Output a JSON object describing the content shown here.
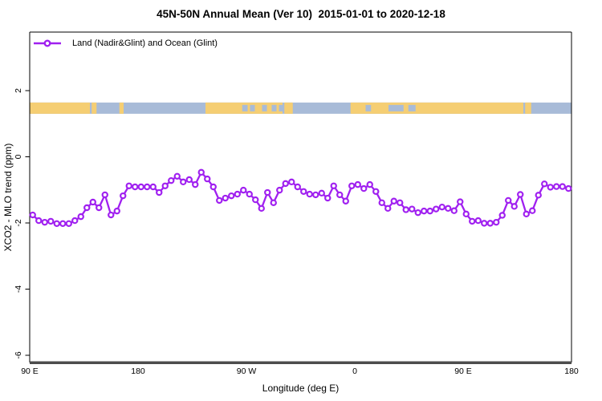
{
  "title": "45N-50N Annual Mean (Ver 10)  2015-01-01 to 2020-12-18",
  "legend": {
    "label": "Land (Nadir&Glint) and Ocean (Glint)"
  },
  "colors": {
    "series": "#A020F0",
    "marker_fill": "#ffffff",
    "land": "#F5CE73",
    "ocean": "#A8BBD8",
    "axis": "#000000",
    "baseline": "#4d4d4d",
    "background": "#ffffff"
  },
  "chart_data": {
    "type": "line",
    "title": "45N-50N Annual Mean (Ver 10)  2015-01-01 to 2020-12-18",
    "xlabel": "Longitude (deg E)",
    "ylabel": "XCO2 - MLO trend (ppm)",
    "xlim": [
      90,
      540
    ],
    "ylim": [
      -6.22,
      3.77
    ],
    "grid": false,
    "legend_position": "top-left-inside",
    "x_ticks": [
      {
        "pos": 90,
        "label": "90 E"
      },
      {
        "pos": 180,
        "label": "180"
      },
      {
        "pos": 270,
        "label": "90 W"
      },
      {
        "pos": 360,
        "label": "0"
      },
      {
        "pos": 450,
        "label": "90 E"
      },
      {
        "pos": 540,
        "label": "180"
      }
    ],
    "y_ticks": [
      {
        "pos": 2,
        "label": "2"
      },
      {
        "pos": 0,
        "label": "0"
      },
      {
        "pos": -2,
        "label": "-2"
      },
      {
        "pos": -4,
        "label": "-4"
      },
      {
        "pos": -6,
        "label": "-6"
      }
    ],
    "map_band": {
      "description": "land/ocean strip along 45N-50N",
      "value_range": [
        1.3,
        1.64
      ],
      "land_segments_lon": [
        [
          90,
          140
        ],
        [
          141.5,
          145.5
        ],
        [
          164.5,
          168
        ],
        [
          236,
          300
        ],
        [
          301.5,
          308.5
        ],
        [
          356.5,
          500
        ],
        [
          501.5,
          506.5
        ]
      ],
      "ocean_specks_lon": [
        [
          266.5,
          271
        ],
        [
          273,
          277
        ],
        [
          283,
          287
        ],
        [
          291,
          295
        ],
        [
          297,
          300.5
        ],
        [
          369,
          373.5
        ],
        [
          388,
          400.5
        ],
        [
          404.5,
          410.5
        ]
      ]
    },
    "series": [
      {
        "name": "Land (Nadir&Glint) and Ocean (Glint)",
        "marker": "open-circle",
        "x": [
          92.5,
          97.5,
          102.5,
          107.5,
          112.5,
          117.5,
          122.5,
          127.5,
          132.5,
          137.5,
          142.5,
          147.5,
          152.5,
          157.5,
          162.5,
          167.5,
          172.5,
          177.5,
          182.5,
          187.5,
          192.5,
          197.5,
          202.5,
          207.5,
          212.5,
          217.5,
          222.5,
          227.5,
          232.5,
          237.5,
          242.5,
          247.5,
          252.5,
          257.5,
          262.5,
          267.5,
          272.5,
          277.5,
          282.5,
          287.5,
          292.5,
          297.5,
          302.5,
          307.5,
          312.5,
          317.5,
          322.5,
          327.5,
          332.5,
          337.5,
          342.5,
          347.5,
          352.5,
          357.5,
          362.5,
          367.5,
          372.5,
          377.5,
          382.5,
          387.5,
          392.5,
          397.5,
          402.5,
          407.5,
          412.5,
          417.5,
          422.5,
          427.5,
          432.5,
          437.5,
          442.5,
          447.5,
          452.5,
          457.5,
          462.5,
          467.5,
          472.5,
          477.5,
          482.5,
          487.5,
          492.5,
          497.5,
          502.5,
          507.5,
          512.5,
          517.5,
          522.5,
          527.5,
          532.5,
          537.5
        ],
        "y": [
          -1.76,
          -1.93,
          -1.98,
          -1.95,
          -2.02,
          -2.02,
          -2.02,
          -1.93,
          -1.81,
          -1.54,
          -1.37,
          -1.54,
          -1.15,
          -1.76,
          -1.64,
          -1.18,
          -0.88,
          -0.91,
          -0.91,
          -0.91,
          -0.91,
          -1.08,
          -0.88,
          -0.72,
          -0.59,
          -0.76,
          -0.69,
          -0.84,
          -0.47,
          -0.67,
          -0.91,
          -1.32,
          -1.25,
          -1.18,
          -1.13,
          -1.01,
          -1.13,
          -1.3,
          -1.56,
          -1.08,
          -1.39,
          -1.01,
          -0.81,
          -0.76,
          -0.91,
          -1.05,
          -1.13,
          -1.15,
          -1.1,
          -1.25,
          -0.88,
          -1.15,
          -1.34,
          -0.88,
          -0.84,
          -0.96,
          -0.84,
          -1.05,
          -1.39,
          -1.56,
          -1.34,
          -1.39,
          -1.6,
          -1.58,
          -1.69,
          -1.64,
          -1.64,
          -1.58,
          -1.52,
          -1.56,
          -1.63,
          -1.36,
          -1.73,
          -1.95,
          -1.93,
          -2.01,
          -2.01,
          -1.98,
          -1.77,
          -1.32,
          -1.5,
          -1.14,
          -1.73,
          -1.63,
          -1.16,
          -0.82,
          -0.92,
          -0.9,
          -0.9,
          -0.96
        ]
      }
    ]
  }
}
